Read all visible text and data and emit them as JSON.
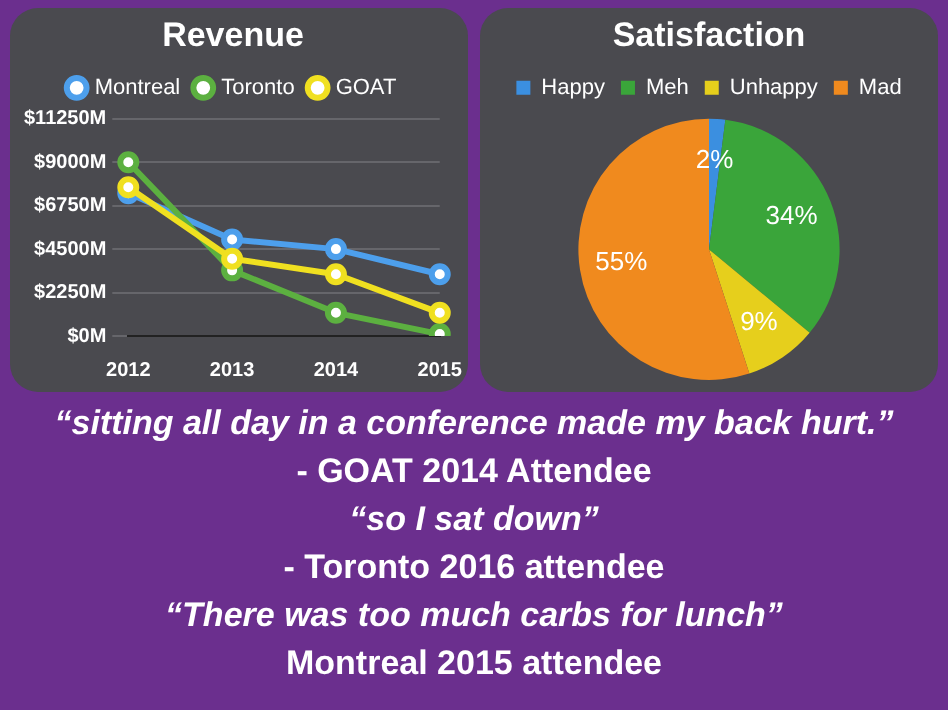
{
  "chart_data": [
    {
      "type": "line",
      "title": "Revenue",
      "categories": [
        "2012",
        "2013",
        "2014",
        "2015"
      ],
      "series": [
        {
          "name": "Montreal",
          "color": "#4d9fec",
          "values": [
            7400,
            5000,
            4500,
            3200
          ]
        },
        {
          "name": "Toronto",
          "color": "#5cb040",
          "values": [
            9000,
            3400,
            1200,
            100
          ]
        },
        {
          "name": "GOAT",
          "color": "#f0e020",
          "values": [
            7700,
            4000,
            3200,
            1200
          ]
        }
      ],
      "ylim": [
        0,
        11250
      ],
      "yticks": [
        {
          "value": 0,
          "label": "$0M"
        },
        {
          "value": 2250,
          "label": "$2250M"
        },
        {
          "value": 4500,
          "label": "$4500M"
        },
        {
          "value": 6750,
          "label": "$6750M"
        },
        {
          "value": 9000,
          "label": "$9000M"
        },
        {
          "value": 11250,
          "label": "$11250M"
        }
      ],
      "grid": "y",
      "legend": "top",
      "marker": "circle",
      "line_style": "solid"
    },
    {
      "type": "pie",
      "title": "Satisfaction",
      "categories": [
        "Happy",
        "Meh",
        "Unhappy",
        "Mad"
      ],
      "values": [
        2,
        34,
        9,
        55
      ],
      "colors": [
        "#3b8fe0",
        "#3aa53a",
        "#e6cf1c",
        "#f08a1e"
      ],
      "value_labels": [
        "2%",
        "34%",
        "9%",
        "55%"
      ],
      "legend": "top"
    },
    {
      "type": "other",
      "annotations": [
        "“sitting all day in a conference made my back hurt.”",
        "- GOAT 2014 Attendee",
        "“so I sat down”",
        "- Toronto 2016 attendee",
        "“There was too much carbs for lunch”",
        "Montreal 2015 attendee"
      ]
    }
  ]
}
